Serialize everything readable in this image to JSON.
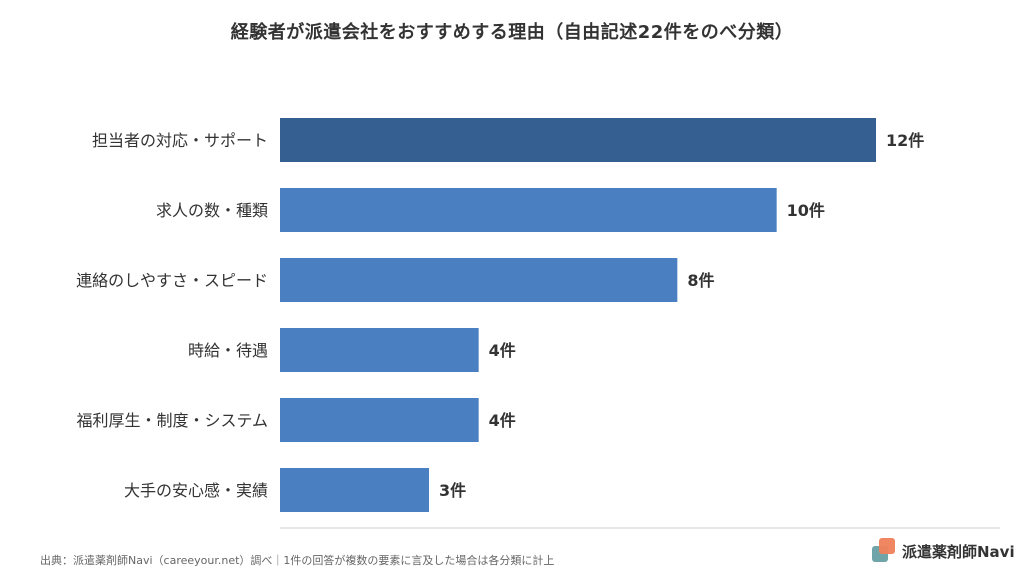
{
  "title": "経験者が派遣会社をおすすめする理由（自由記述22件をのべ分類）",
  "footer": "出典：派遣薬剤師Navi（careeyour.net）調べ｜1件の回答が複数の要素に言及した場合は各分類に計上",
  "brand": {
    "name": "派遣薬剤師Navi",
    "icon": "logo-squares-icon"
  },
  "colors": {
    "highlight": "#365f91",
    "bar": "#4a7fc1",
    "axis": "#cccccc"
  },
  "chart_data": {
    "type": "bar",
    "orientation": "horizontal",
    "categories": [
      "担当者の対応・サポート",
      "求人の数・種類",
      "連絡のしやすさ・スピード",
      "時給・待遇",
      "福利厚生・制度・システム",
      "大手の安心感・実績"
    ],
    "values": [
      12,
      10,
      8,
      4,
      4,
      3
    ],
    "value_labels": [
      "12件",
      "10件",
      "8件",
      "4件",
      "4件",
      "3件"
    ],
    "highlight_index": 0,
    "xlim": [
      0,
      12
    ],
    "grid": false
  }
}
